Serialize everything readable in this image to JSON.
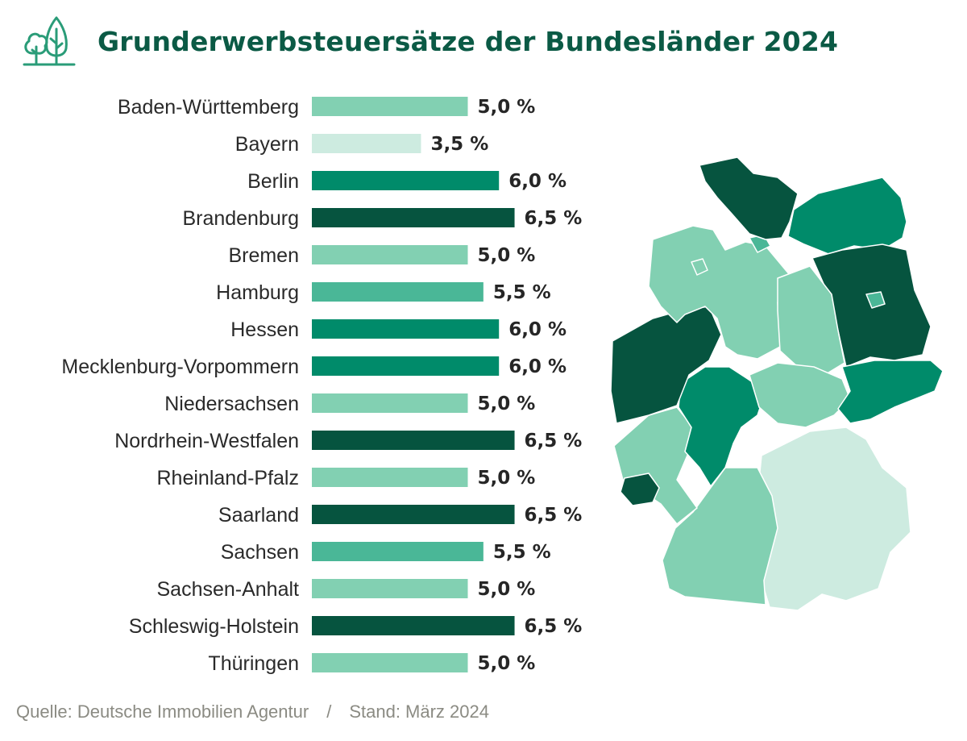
{
  "header": {
    "title": "Grunderwerbsteuersätze der Bundesländer 2024",
    "logo_icon": "trees-icon"
  },
  "colors": {
    "5,0 %": "#82d0b2",
    "3,5 %": "#cdebe0",
    "6,0 %": "#008b6a",
    "6,5 %": "#06543f",
    "5,5 %": "#4ab797",
    "title": "#0b5a45"
  },
  "chart_data": {
    "type": "bar",
    "orientation": "horizontal",
    "title": "Grunderwerbsteuersätze der Bundesländer 2024",
    "categories": [
      "Baden-Württemberg",
      "Bayern",
      "Berlin",
      "Brandenburg",
      "Bremen",
      "Hamburg",
      "Hessen",
      "Mecklenburg-Vorpommern",
      "Niedersachsen",
      "Nordrhein-Westfalen",
      "Rheinland-Pfalz",
      "Saarland",
      "Sachsen",
      "Sachsen-Anhalt",
      "Schleswig-Holstein",
      "Thüringen"
    ],
    "values": [
      5.0,
      3.5,
      6.0,
      6.5,
      5.0,
      5.5,
      6.0,
      6.0,
      5.0,
      6.5,
      5.0,
      6.5,
      5.5,
      5.0,
      6.5,
      5.0
    ],
    "value_labels": [
      "5,0 %",
      "3,5 %",
      "6,0 %",
      "6,5 %",
      "5,0 %",
      "5,5 %",
      "6,0 %",
      "6,0 %",
      "5,0 %",
      "6,5 %",
      "5,0 %",
      "6,5 %",
      "5,5 %",
      "5,0 %",
      "6,5 %",
      "5,0 %"
    ],
    "xlim": [
      0,
      6.5
    ],
    "xlabel": "",
    "ylabel": "",
    "grid": false,
    "legend": "none"
  },
  "map": {
    "description_icon": "germany-map-icon"
  },
  "footer": {
    "source": "Quelle: Deutsche Immobilien Agentur",
    "separator": "/",
    "date": "Stand: März 2024"
  }
}
